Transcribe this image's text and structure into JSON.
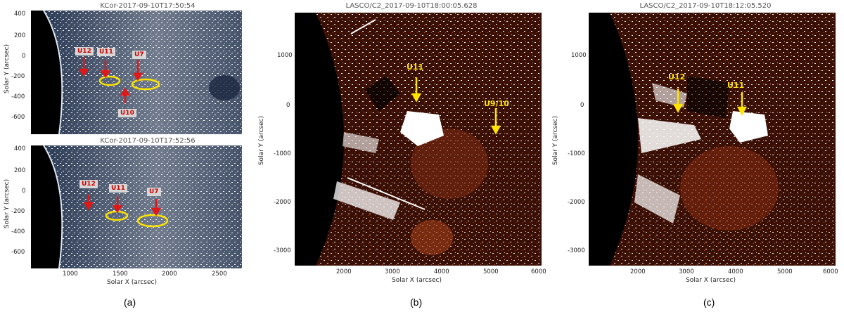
{
  "panel_a": {
    "top_title": "KCor-2017-09-10T17:50:54",
    "bottom_title": "KCor-2017-09-10T17:52:56",
    "y_ticks": [
      "400",
      "200",
      "0",
      "-200",
      "-400",
      "-600"
    ],
    "x_ticks": [
      "1000",
      "1500",
      "2000",
      "2500"
    ],
    "y_label": "Solar Y (arcsec)",
    "x_label": "Solar X (arcsec)",
    "top_labels": [
      "U12",
      "U11",
      "U7",
      "U10"
    ],
    "bottom_labels": [
      "U12",
      "U11",
      "U7"
    ],
    "caption": "(a)"
  },
  "panel_b": {
    "title": "LASCO/C2_2017-09-10T18:00:05.628",
    "y_ticks": [
      "1000",
      "0",
      "-1000",
      "-2000",
      "-3000"
    ],
    "x_ticks": [
      "2000",
      "3000",
      "4000",
      "5000",
      "6000"
    ],
    "y_label": "Solar Y (arcsec)",
    "x_label": "Solar X (arcsec)",
    "labels": [
      "U11",
      "U9/10"
    ],
    "caption": "(b)"
  },
  "panel_c": {
    "title": "LASCO/C2_2017-09-10T18:12:05.520",
    "y_ticks": [
      "1000",
      "0",
      "-1000",
      "-2000",
      "-3000"
    ],
    "x_ticks": [
      "2000",
      "3000",
      "4000",
      "5000",
      "6000"
    ],
    "y_label": "Solar Y (arcsec)",
    "x_label": "Solar X (arcsec)",
    "labels": [
      "U12",
      "U11"
    ],
    "caption": "(c)"
  },
  "colors": {
    "kcor_bg": "#1a2740",
    "lasco_bg": "#3a0f05",
    "arrow_red": "#e01818",
    "ellipse": "#ffe400",
    "label_yellow": "#ffe400"
  }
}
